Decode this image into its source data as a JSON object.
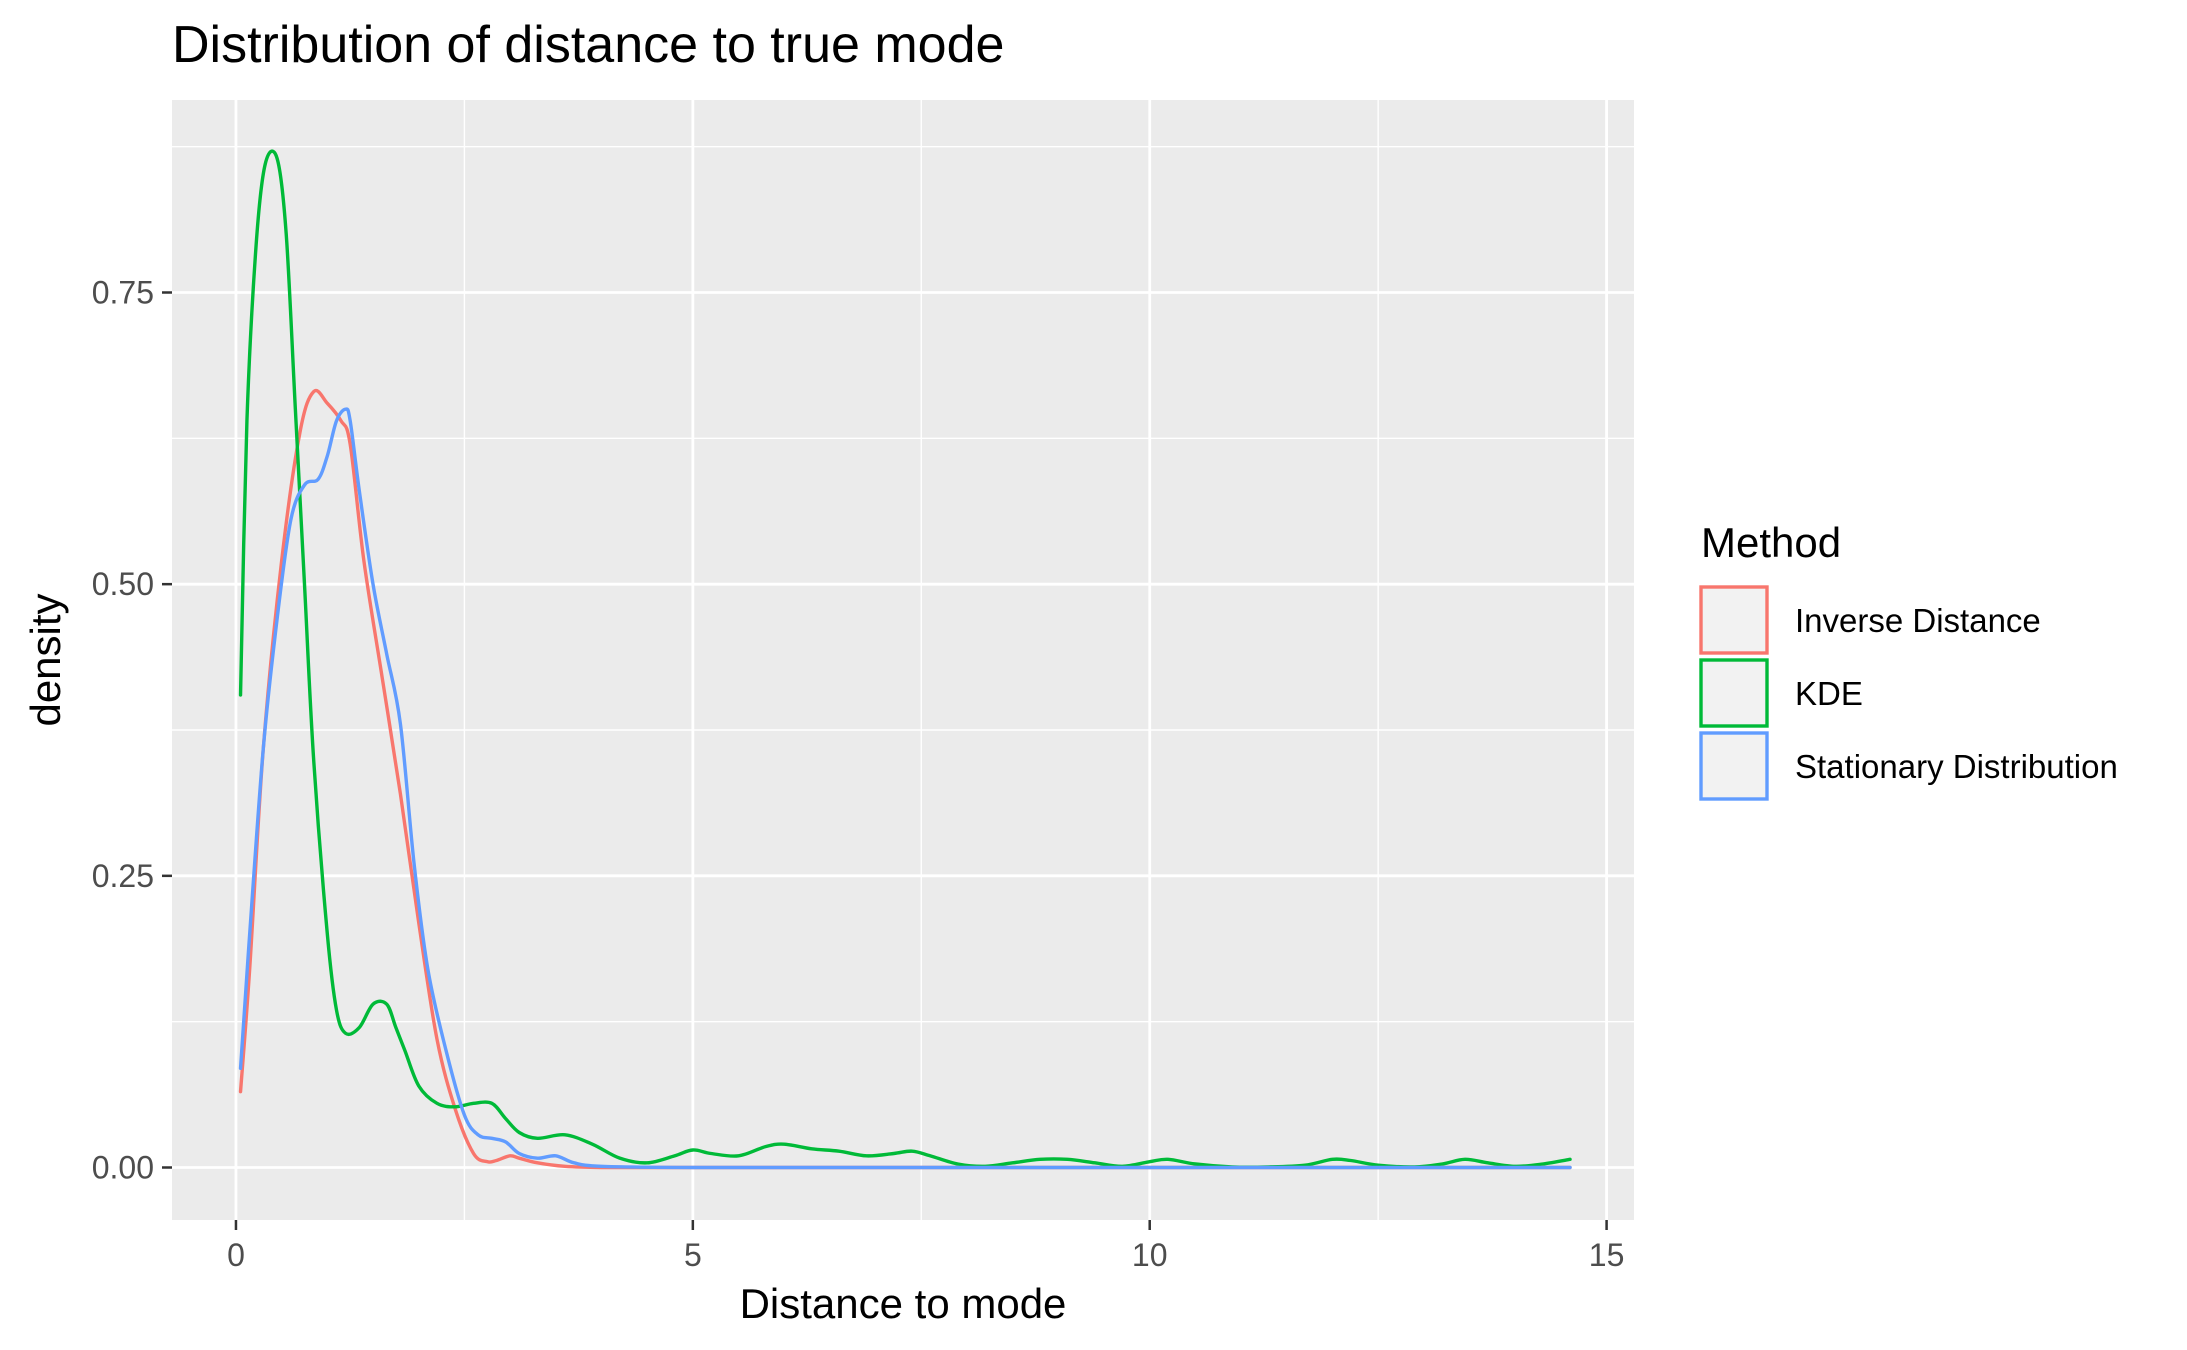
{
  "chart_data": {
    "type": "line",
    "title": "Distribution of distance to true mode",
    "xlabel": "Distance to mode",
    "ylabel": "density",
    "xlim": [
      -0.7,
      15.3
    ],
    "ylim": [
      -0.045,
      0.915
    ],
    "x_ticks": [
      0,
      5,
      10,
      15
    ],
    "x_tick_labels": [
      "0",
      "5",
      "10",
      "15"
    ],
    "y_ticks": [
      0,
      0.25,
      0.5,
      0.75
    ],
    "y_tick_labels": [
      "0.00",
      "0.25",
      "0.50",
      "0.75"
    ],
    "grid": true,
    "legend": {
      "title": "Method",
      "position": "right"
    },
    "series": [
      {
        "name": "Inverse Distance",
        "color": "#F8766D",
        "x": [
          0.05,
          0.15,
          0.3,
          0.5,
          0.7,
          0.85,
          1.0,
          1.15,
          1.25,
          1.4,
          1.6,
          1.8,
          2.0,
          2.2,
          2.4,
          2.6,
          2.75,
          2.85,
          3.0,
          3.1,
          3.3,
          3.6,
          4.0,
          5.0,
          7.0,
          10.0,
          14.6
        ],
        "values": [
          0.065,
          0.17,
          0.36,
          0.52,
          0.63,
          0.665,
          0.655,
          0.64,
          0.62,
          0.52,
          0.42,
          0.32,
          0.21,
          0.11,
          0.05,
          0.012,
          0.005,
          0.006,
          0.01,
          0.008,
          0.004,
          0.001,
          0,
          0,
          0,
          0,
          0
        ]
      },
      {
        "name": "KDE",
        "color": "#00BA38",
        "x": [
          0.05,
          0.12,
          0.22,
          0.32,
          0.45,
          0.55,
          0.65,
          0.75,
          0.85,
          1.0,
          1.1,
          1.2,
          1.35,
          1.5,
          1.65,
          1.75,
          1.85,
          2.0,
          2.2,
          2.4,
          2.6,
          2.8,
          2.95,
          3.1,
          3.3,
          3.6,
          3.9,
          4.2,
          4.5,
          4.8,
          5.0,
          5.2,
          5.5,
          5.8,
          6.0,
          6.3,
          6.6,
          6.9,
          7.2,
          7.4,
          7.6,
          7.9,
          8.2,
          8.5,
          8.8,
          9.1,
          9.4,
          9.7,
          10.0,
          10.2,
          10.5,
          10.9,
          11.3,
          11.7,
          12.0,
          12.2,
          12.5,
          12.9,
          13.2,
          13.45,
          13.7,
          14.0,
          14.3,
          14.6
        ],
        "values": [
          0.405,
          0.64,
          0.79,
          0.86,
          0.865,
          0.8,
          0.65,
          0.5,
          0.35,
          0.2,
          0.135,
          0.115,
          0.12,
          0.14,
          0.14,
          0.12,
          0.1,
          0.07,
          0.055,
          0.052,
          0.055,
          0.055,
          0.042,
          0.03,
          0.025,
          0.028,
          0.02,
          0.008,
          0.004,
          0.01,
          0.015,
          0.012,
          0.01,
          0.018,
          0.02,
          0.016,
          0.014,
          0.01,
          0.012,
          0.014,
          0.01,
          0.003,
          0.001,
          0.004,
          0.007,
          0.007,
          0.004,
          0.001,
          0.005,
          0.007,
          0.003,
          0.0005,
          0.0005,
          0.002,
          0.007,
          0.006,
          0.002,
          0.0005,
          0.003,
          0.007,
          0.004,
          0.001,
          0.003,
          0.007
        ]
      },
      {
        "name": "Stationary Distribution",
        "color": "#619CFF",
        "x": [
          0.05,
          0.15,
          0.3,
          0.45,
          0.6,
          0.75,
          0.9,
          1.0,
          1.1,
          1.2,
          1.25,
          1.35,
          1.5,
          1.65,
          1.8,
          1.95,
          2.1,
          2.3,
          2.5,
          2.65,
          2.8,
          2.95,
          3.1,
          3.3,
          3.5,
          3.7,
          4.0,
          5.0,
          7.0,
          10.0,
          14.6
        ],
        "values": [
          0.085,
          0.2,
          0.36,
          0.47,
          0.555,
          0.585,
          0.59,
          0.61,
          0.64,
          0.65,
          0.64,
          0.58,
          0.5,
          0.44,
          0.38,
          0.26,
          0.17,
          0.1,
          0.045,
          0.028,
          0.025,
          0.022,
          0.012,
          0.008,
          0.01,
          0.004,
          0.001,
          0,
          0,
          0,
          0
        ]
      }
    ]
  }
}
